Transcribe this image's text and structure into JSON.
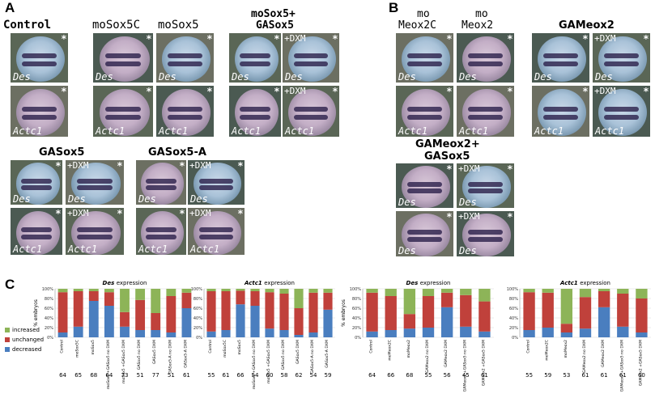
{
  "panels": {
    "a": "A",
    "b": "B",
    "c": "C"
  },
  "titles": {
    "control": "Control",
    "mosox5c": "moSox5C",
    "mosox5": "moSox5",
    "mosox5_gasox5_1": "moSox5+",
    "mosox5_gasox5_2": "GASox5",
    "momeox2c_1": "mo",
    "momeox2c_2": "Meox2C",
    "momeox2_1": "mo",
    "momeox2_2": "Meox2",
    "gameox2": "GAMeox2",
    "gasox5": "GASox5",
    "gasox5a": "GASox5-A",
    "gameox2_gasox5_1": "GAMeox2+",
    "gameox2_gasox5_2": "GASox5"
  },
  "tile_text": {
    "des": "Des",
    "actc1": "Actc1",
    "dxm": "+DXM",
    "asterisk": "*"
  },
  "colors": {
    "increased": "#8DB458",
    "unchanged": "#C0413B",
    "decreased": "#4A7EBF",
    "embryo": "#9a8aa6",
    "bg_tile": "#4a5a4a"
  },
  "legend": {
    "increased": "increased",
    "unchanged": "unchanged",
    "decreased": "decreased"
  },
  "chart_data": [
    {
      "type": "bar",
      "title": "Des expression",
      "ylabel": "% embryos",
      "ylim": [
        0,
        100
      ],
      "yticks": [
        "0%",
        "20%",
        "40%",
        "60%",
        "80%",
        "100%"
      ],
      "categories": [
        "Control",
        "moSox5C",
        "moSox5",
        "moSox5 +GASox5 no DXM",
        "moSox5 +GASox5 DXM",
        "GASox5 no DXM",
        "GASox5 DXM",
        "GASox5-A no DXM",
        "GASox5-A DXM"
      ],
      "n": [
        "64",
        "65",
        "68",
        "64",
        "73",
        "51",
        "77",
        "51",
        "61"
      ],
      "series": [
        {
          "name": "decreased",
          "values": [
            10,
            22,
            75,
            65,
            22,
            15,
            15,
            10,
            60
          ]
        },
        {
          "name": "unchanged",
          "values": [
            83,
            73,
            20,
            28,
            30,
            62,
            35,
            75,
            32
          ]
        },
        {
          "name": "increased",
          "values": [
            7,
            5,
            5,
            7,
            48,
            23,
            50,
            15,
            8
          ]
        }
      ]
    },
    {
      "type": "bar",
      "title": "Actc1 expression",
      "ylim": [
        0,
        100
      ],
      "yticks": [
        "0%",
        "20%",
        "40%",
        "60%",
        "80%",
        "100%"
      ],
      "categories": [
        "Control",
        "moSox5C",
        "moSox5",
        "moSox5 +GASox5 no DXM",
        "moSox5 +GASox5 DXM",
        "GASox5 no DXM",
        "GASox5 DXM",
        "GASox5-A no DXM",
        "GASox5-A DXM"
      ],
      "n": [
        "55",
        "61",
        "66",
        "54",
        "60",
        "58",
        "62",
        "54",
        "59"
      ],
      "series": [
        {
          "name": "decreased",
          "values": [
            12,
            15,
            68,
            65,
            18,
            15,
            5,
            10,
            57
          ]
        },
        {
          "name": "unchanged",
          "values": [
            83,
            80,
            28,
            30,
            75,
            75,
            55,
            82,
            35
          ]
        },
        {
          "name": "increased",
          "values": [
            5,
            5,
            4,
            5,
            7,
            10,
            40,
            8,
            8
          ]
        }
      ]
    },
    {
      "type": "bar",
      "title": "Des expression",
      "ylabel": "% embryos",
      "ylim": [
        0,
        100
      ],
      "yticks": [
        "0%",
        "20%",
        "40%",
        "60%",
        "80%",
        "100%"
      ],
      "categories": [
        "Control",
        "moMeox2C",
        "moMeox2",
        "GAMeox2 no DXM",
        "GAMeox2 DXM",
        "GAMeox2 +GASox5 no DXM",
        "GAMeox2 +GASox5 DXM"
      ],
      "n": [
        "64",
        "66",
        "68",
        "55",
        "56",
        "45",
        "61"
      ],
      "series": [
        {
          "name": "decreased",
          "values": [
            12,
            15,
            18,
            20,
            62,
            22,
            12
          ]
        },
        {
          "name": "unchanged",
          "values": [
            80,
            70,
            30,
            65,
            30,
            65,
            62
          ]
        },
        {
          "name": "increased",
          "values": [
            8,
            15,
            52,
            15,
            8,
            13,
            26
          ]
        }
      ]
    },
    {
      "type": "bar",
      "title": "Actc1 expression",
      "ylim": [
        0,
        100
      ],
      "yticks": [
        "0%",
        "20%",
        "40%",
        "60%",
        "80%",
        "100%"
      ],
      "categories": [
        "Control",
        "moMeox2C",
        "moMeox2",
        "GAMeox2 no DXM",
        "GAMeox2 DXM",
        "GAMeox2 +GASox5 no DXM",
        "GAMeox2 +GASox5 DXM"
      ],
      "n": [
        "55",
        "59",
        "53",
        "61",
        "61",
        "61",
        "60"
      ],
      "series": [
        {
          "name": "decreased",
          "values": [
            15,
            20,
            10,
            18,
            62,
            22,
            10
          ]
        },
        {
          "name": "unchanged",
          "values": [
            78,
            72,
            18,
            65,
            33,
            68,
            70
          ]
        },
        {
          "name": "increased",
          "values": [
            7,
            8,
            72,
            17,
            5,
            10,
            20
          ]
        }
      ]
    }
  ]
}
